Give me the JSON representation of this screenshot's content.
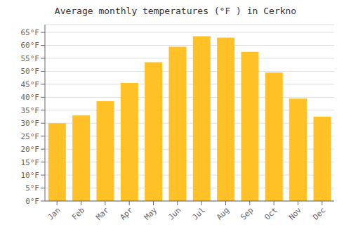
{
  "chart_data": {
    "type": "bar",
    "title": "Average monthly temperatures (°F ) in Cerkno",
    "categories": [
      "Jan",
      "Feb",
      "Mar",
      "Apr",
      "May",
      "Jun",
      "Jul",
      "Aug",
      "Sep",
      "Oct",
      "Nov",
      "Dec"
    ],
    "values": [
      30.0,
      33.0,
      38.5,
      45.5,
      53.5,
      59.5,
      63.5,
      63.0,
      57.5,
      49.5,
      39.5,
      32.5
    ],
    "color": "#FFC125",
    "ylim": [
      0,
      68
    ],
    "yticks": [
      {
        "value": 0,
        "label": "0°F"
      },
      {
        "value": 5,
        "label": "5°F"
      },
      {
        "value": 10,
        "label": "10°F"
      },
      {
        "value": 15,
        "label": "15°F"
      },
      {
        "value": 20,
        "label": "20°F"
      },
      {
        "value": 25,
        "label": "25°F"
      },
      {
        "value": 30,
        "label": "30°F"
      },
      {
        "value": 35,
        "label": "35°F"
      },
      {
        "value": 40,
        "label": "40°F"
      },
      {
        "value": 45,
        "label": "45°F"
      },
      {
        "value": 50,
        "label": "50°F"
      },
      {
        "value": 55,
        "label": "55°F"
      },
      {
        "value": 60,
        "label": "60°F"
      },
      {
        "value": 65,
        "label": "65°F"
      }
    ],
    "grid": true
  }
}
